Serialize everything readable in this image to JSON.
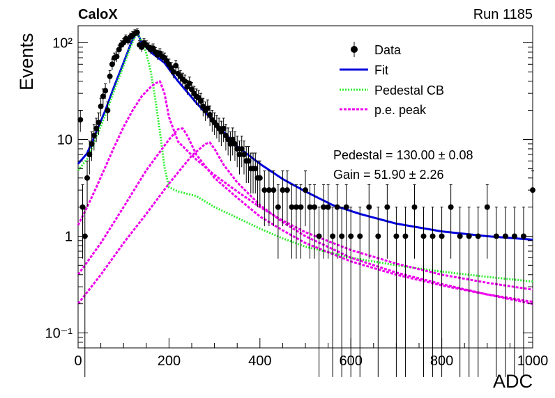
{
  "header": {
    "label_left": "CaloX",
    "label_right": "Run 1185"
  },
  "fit_results": {
    "pedestal": "Pedestal = 130.00 ± 0.08",
    "gain": "Gain = 51.90 ± 2.26"
  },
  "legend": {
    "data": "Data",
    "fit": "Fit",
    "pedestal_cb": "Pedestal CB",
    "pe_peak": "p.e. peak"
  },
  "colors": {
    "data": "#000000",
    "fit": "#0000dd",
    "pedestal_cb": "#33ee33",
    "pe_peak": "#ee00ee"
  },
  "chart_data": {
    "type": "scatter",
    "xlabel": "ADC",
    "ylabel": "Events",
    "xlim": [
      0,
      1000
    ],
    "ylim": [
      0.07,
      150
    ],
    "yscale": "log",
    "xticks": [
      0,
      200,
      400,
      600,
      800,
      1000
    ],
    "yticks": [
      {
        "value": 0.1,
        "label": "10⁻¹"
      },
      {
        "value": 1,
        "label": "1"
      },
      {
        "value": 10,
        "label": "10"
      },
      {
        "value": 100,
        "label": "10²"
      }
    ],
    "legend_position": "top-right",
    "data_points": {
      "x": [
        5,
        10,
        15,
        20,
        25,
        30,
        35,
        40,
        45,
        50,
        55,
        60,
        65,
        70,
        75,
        80,
        85,
        90,
        95,
        100,
        105,
        110,
        115,
        120,
        125,
        130,
        135,
        140,
        145,
        150,
        155,
        160,
        165,
        170,
        175,
        180,
        185,
        190,
        195,
        200,
        205,
        210,
        215,
        220,
        225,
        230,
        235,
        240,
        245,
        250,
        255,
        260,
        265,
        270,
        275,
        280,
        285,
        290,
        295,
        300,
        305,
        310,
        315,
        320,
        325,
        330,
        335,
        340,
        345,
        350,
        355,
        360,
        365,
        370,
        375,
        380,
        385,
        390,
        395,
        400,
        410,
        420,
        430,
        440,
        450,
        460,
        470,
        480,
        490,
        500,
        510,
        520,
        530,
        540,
        550,
        560,
        570,
        580,
        590,
        600,
        620,
        640,
        660,
        680,
        700,
        720,
        740,
        760,
        780,
        800,
        820,
        840,
        860,
        880,
        900,
        920,
        940,
        960,
        980,
        1000
      ],
      "y": [
        16,
        2,
        1,
        4,
        7,
        9,
        11,
        13,
        15,
        22,
        28,
        32,
        20,
        45,
        60,
        70,
        72,
        85,
        95,
        100,
        110,
        105,
        115,
        120,
        125,
        128,
        95,
        90,
        100,
        95,
        90,
        85,
        88,
        80,
        75,
        78,
        72,
        70,
        65,
        60,
        55,
        50,
        58,
        48,
        45,
        42,
        40,
        35,
        38,
        33,
        30,
        28,
        27,
        25,
        22,
        20,
        21,
        18,
        16,
        15,
        14,
        13,
        12,
        13,
        11,
        10,
        9,
        10,
        9,
        8,
        7,
        8,
        7,
        6,
        6,
        5,
        5,
        5,
        4,
        4,
        3,
        3,
        3,
        2,
        3,
        3,
        2,
        2,
        2,
        3,
        2,
        2,
        1,
        2,
        2,
        1,
        2,
        1,
        2,
        1,
        1,
        2,
        1,
        2,
        1,
        1,
        2,
        1,
        1,
        1,
        2,
        1,
        1,
        1,
        2,
        1,
        1,
        1,
        1,
        3
      ]
    },
    "series": [
      {
        "name": "Fit",
        "color": "#0000dd",
        "x": [
          0,
          20,
          40,
          60,
          80,
          100,
          115,
          125,
          130,
          140,
          160,
          190,
          220,
          260,
          300,
          350,
          400,
          450,
          500,
          560,
          620,
          700,
          800,
          900,
          1000
        ],
        "y": [
          5.6,
          7.2,
          12,
          20,
          36,
          62,
          95,
          120,
          128,
          100,
          80,
          62,
          40,
          24,
          15,
          8.5,
          5.6,
          3.9,
          2.9,
          2.1,
          1.7,
          1.35,
          1.12,
          1.0,
          0.92
        ]
      },
      {
        "name": "Pedestal CB",
        "color": "#33ee33",
        "x": [
          0,
          20,
          40,
          60,
          80,
          100,
          115,
          125,
          130,
          140,
          150,
          160,
          170,
          180,
          190,
          200,
          220,
          260,
          300,
          350,
          400,
          450,
          500,
          600,
          700,
          800,
          900,
          1000
        ],
        "y": [
          4.8,
          6.3,
          10.5,
          18,
          33,
          58,
          90,
          115,
          124,
          104,
          78,
          50,
          26,
          12,
          5.2,
          3.2,
          2.9,
          2.6,
          2.0,
          1.55,
          1.2,
          0.95,
          0.78,
          0.6,
          0.5,
          0.43,
          0.38,
          0.34
        ]
      },
      {
        "name": "p.e. peak",
        "color": "#ee00ee",
        "x": [
          0,
          20,
          40,
          60,
          80,
          100,
          120,
          140,
          160,
          170,
          180,
          190,
          200,
          220,
          260,
          300,
          350,
          400,
          450,
          500,
          600,
          700,
          800,
          900,
          1000
        ],
        "y": [
          1.3,
          2.0,
          3.2,
          5.2,
          8.5,
          13.5,
          20,
          28,
          35,
          38,
          40,
          30,
          17,
          9.5,
          6.2,
          4.3,
          2.9,
          2.0,
          1.45,
          1.1,
          0.72,
          0.52,
          0.4,
          0.33,
          0.28
        ]
      },
      {
        "name": "",
        "color": "#ee00ee",
        "x": [
          0,
          50,
          100,
          150,
          200,
          220,
          230,
          240,
          260,
          300,
          350,
          400,
          450,
          500,
          600,
          700,
          800,
          900,
          1000
        ],
        "y": [
          0.4,
          0.85,
          2.0,
          4.8,
          10,
          12.8,
          13,
          11,
          7,
          4.0,
          2.5,
          1.6,
          1.15,
          0.85,
          0.55,
          0.4,
          0.31,
          0.25,
          0.21
        ]
      },
      {
        "name": "",
        "color": "#ee00ee",
        "x": [
          0,
          50,
          100,
          150,
          200,
          250,
          280,
          290,
          300,
          320,
          350,
          400,
          450,
          500,
          600,
          700,
          800,
          900,
          1000
        ],
        "y": [
          0.2,
          0.4,
          0.85,
          1.7,
          3.5,
          6.8,
          9,
          9.3,
          8,
          5.5,
          3.6,
          2.1,
          1.4,
          1.0,
          0.6,
          0.42,
          0.32,
          0.25,
          0.2
        ]
      }
    ]
  }
}
